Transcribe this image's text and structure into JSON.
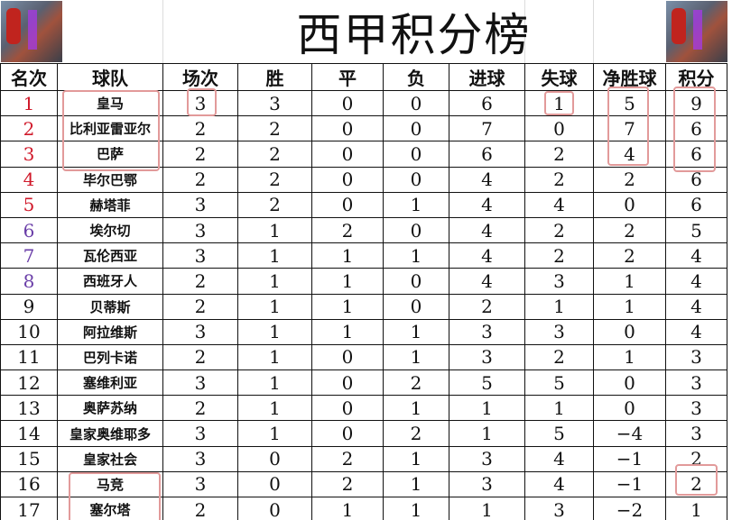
{
  "title": "西甲积分榜",
  "rank_colors": {
    "top": "#d0192a",
    "mid": "#6a3ea8",
    "rest": "#111111"
  },
  "highlight_color": "#e29a9a",
  "headers": [
    "名次",
    "球队",
    "场次",
    "胜",
    "平",
    "负",
    "进球",
    "失球",
    "净胜球",
    "积分"
  ],
  "rows": [
    [
      "1",
      "皇马",
      "3",
      "3",
      "0",
      "0",
      "6",
      "1",
      "5",
      "9"
    ],
    [
      "2",
      "比利亚雷亚尔",
      "2",
      "2",
      "0",
      "0",
      "7",
      "0",
      "7",
      "6"
    ],
    [
      "3",
      "巴萨",
      "2",
      "2",
      "0",
      "0",
      "6",
      "2",
      "4",
      "6"
    ],
    [
      "4",
      "毕尔巴鄂",
      "2",
      "2",
      "0",
      "0",
      "4",
      "2",
      "2",
      "6"
    ],
    [
      "5",
      "赫塔菲",
      "3",
      "2",
      "0",
      "1",
      "4",
      "4",
      "0",
      "6"
    ],
    [
      "6",
      "埃尔切",
      "3",
      "1",
      "2",
      "0",
      "4",
      "2",
      "2",
      "5"
    ],
    [
      "7",
      "瓦伦西亚",
      "3",
      "1",
      "1",
      "1",
      "4",
      "2",
      "2",
      "4"
    ],
    [
      "8",
      "西班牙人",
      "2",
      "1",
      "1",
      "0",
      "4",
      "3",
      "1",
      "4"
    ],
    [
      "9",
      "贝蒂斯",
      "2",
      "1",
      "1",
      "0",
      "2",
      "1",
      "1",
      "4"
    ],
    [
      "10",
      "阿拉维斯",
      "3",
      "1",
      "1",
      "1",
      "3",
      "3",
      "0",
      "4"
    ],
    [
      "11",
      "巴列卡诺",
      "2",
      "1",
      "0",
      "1",
      "3",
      "2",
      "1",
      "3"
    ],
    [
      "12",
      "塞维利亚",
      "3",
      "1",
      "0",
      "2",
      "5",
      "5",
      "0",
      "3"
    ],
    [
      "13",
      "奥萨苏纳",
      "2",
      "1",
      "0",
      "1",
      "1",
      "1",
      "0",
      "3"
    ],
    [
      "14",
      "皇家奥维耶多",
      "3",
      "1",
      "0",
      "2",
      "1",
      "5",
      "−4",
      "3"
    ],
    [
      "15",
      "皇家社会",
      "3",
      "0",
      "2",
      "1",
      "3",
      "4",
      "−1",
      "2"
    ],
    [
      "16",
      "马竞",
      "3",
      "0",
      "2",
      "1",
      "3",
      "4",
      "−1",
      "2"
    ],
    [
      "17",
      "塞尔塔",
      "2",
      "0",
      "1",
      "1",
      "1",
      "3",
      "−2",
      "1"
    ]
  ]
}
